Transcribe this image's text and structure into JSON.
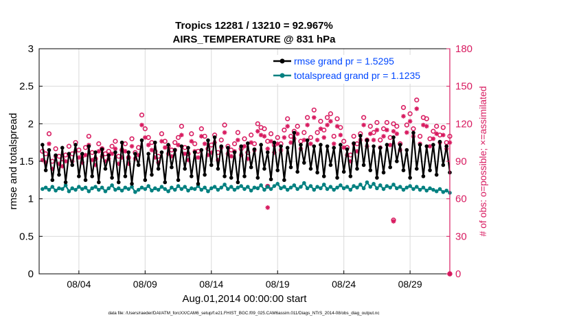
{
  "chart_data": {
    "type": "line",
    "title_line1": "Tropics 12281 / 13210 = 92.967%",
    "title_line2": "AIRS_TEMPERATURE @ 831 hPa",
    "xlabel": "Aug.01,2014 00:00:00 start",
    "ylabel_left": "rmse and totalspread",
    "ylabel_right": "# of obs: o=possible; ×=assimilated",
    "footer": "data file: /Users/raeder/DAI/ATM_forcXX/CAM6_setup/f.e21.FHIST_BGC.f09_025.CAM6assim.011/Diags_NTrS_2014-08/obs_diag_output.nc",
    "xlim": [
      1,
      32
    ],
    "ylim_left": [
      0,
      3
    ],
    "ylim_right": [
      0,
      180
    ],
    "x_ticks": [
      {
        "x": 4,
        "label": "08/04"
      },
      {
        "x": 9,
        "label": "08/09"
      },
      {
        "x": 14,
        "label": "08/14"
      },
      {
        "x": 19,
        "label": "08/19"
      },
      {
        "x": 24,
        "label": "08/24"
      },
      {
        "x": 29,
        "label": "08/29"
      }
    ],
    "y_ticks_left": [
      "0",
      "0.5",
      "1",
      "1.5",
      "2",
      "2.5",
      "3"
    ],
    "y_ticks_right": [
      "0",
      "30",
      "60",
      "90",
      "120",
      "150",
      "180"
    ],
    "colors": {
      "rmse": "#000000",
      "spread": "#008080",
      "obs": "#d81b60",
      "axis_right": "#d81b60",
      "grid": "#d9d9d9",
      "legend_text": "#0047ff"
    },
    "series": [
      {
        "name": "rmse grand pr = 1.5295",
        "axis": "left",
        "x_start": 1.25,
        "x_step": 0.25,
        "values": [
          1.72,
          1.38,
          1.65,
          1.25,
          1.58,
          1.32,
          1.68,
          1.22,
          1.6,
          1.45,
          1.72,
          1.3,
          1.6,
          1.25,
          1.7,
          1.3,
          1.62,
          1.22,
          1.66,
          1.4,
          1.58,
          1.28,
          1.62,
          1.22,
          1.75,
          1.3,
          1.62,
          1.2,
          1.6,
          1.45,
          1.78,
          1.25,
          1.6,
          1.32,
          1.75,
          1.4,
          1.62,
          1.22,
          1.72,
          1.42,
          1.65,
          1.25,
          1.7,
          1.4,
          1.68,
          1.3,
          1.62,
          1.2,
          1.65,
          1.32,
          1.78,
          1.45,
          1.82,
          1.4,
          1.7,
          1.3,
          1.68,
          1.28,
          1.62,
          1.22,
          1.7,
          1.3,
          1.74,
          1.42,
          1.66,
          1.28,
          1.72,
          1.4,
          1.62,
          1.26,
          1.75,
          1.38,
          1.7,
          1.25,
          1.68,
          1.42,
          1.88,
          1.36,
          1.72,
          1.48,
          1.78,
          1.4,
          1.7,
          1.35,
          1.72,
          1.3,
          1.7,
          1.45,
          1.68,
          1.28,
          1.72,
          1.36,
          1.66,
          1.3,
          1.74,
          1.4,
          1.84,
          1.45,
          1.78,
          1.38,
          1.7,
          1.28,
          1.68,
          1.35,
          1.72,
          1.42,
          1.82,
          1.5,
          1.72,
          1.38,
          1.65,
          1.28,
          1.88,
          1.4,
          1.72,
          1.3,
          1.7,
          1.38,
          1.72,
          1.32,
          1.76,
          1.45,
          1.7,
          1.35
        ]
      },
      {
        "name": "totalspread grand pr = 1.1235",
        "axis": "left",
        "x_start": 1.25,
        "x_step": 0.25,
        "values": [
          1.13,
          1.15,
          1.12,
          1.16,
          1.11,
          1.14,
          1.13,
          1.18,
          1.1,
          1.14,
          1.12,
          1.16,
          1.13,
          1.15,
          1.1,
          1.14,
          1.16,
          1.12,
          1.15,
          1.1,
          1.14,
          1.18,
          1.12,
          1.14,
          1.11,
          1.15,
          1.13,
          1.16,
          1.09,
          1.12,
          1.15,
          1.13,
          1.17,
          1.11,
          1.14,
          1.12,
          1.16,
          1.13,
          1.1,
          1.15,
          1.12,
          1.17,
          1.13,
          1.16,
          1.11,
          1.14,
          1.13,
          1.17,
          1.12,
          1.15,
          1.1,
          1.14,
          1.16,
          1.12,
          1.15,
          1.19,
          1.13,
          1.16,
          1.12,
          1.15,
          1.17,
          1.13,
          1.16,
          1.11,
          1.15,
          1.14,
          1.18,
          1.12,
          1.16,
          1.13,
          1.17,
          1.2,
          1.14,
          1.16,
          1.12,
          1.15,
          1.18,
          1.13,
          1.16,
          1.21,
          1.14,
          1.17,
          1.12,
          1.16,
          1.14,
          1.19,
          1.13,
          1.16,
          1.12,
          1.15,
          1.18,
          1.14,
          1.16,
          1.12,
          1.17,
          1.15,
          1.19,
          1.14,
          1.22,
          1.16,
          1.2,
          1.14,
          1.18,
          1.13,
          1.17,
          1.15,
          1.19,
          1.14,
          1.16,
          1.12,
          1.15,
          1.17,
          1.13,
          1.16,
          1.12,
          1.15,
          1.11,
          1.14,
          1.12,
          1.1,
          1.13,
          1.09,
          1.11,
          1.08
        ]
      },
      {
        "name": "obs possible",
        "axis": "right",
        "marker": "circle",
        "x_start": 1.25,
        "x_step": 0.25,
        "values": [
          98,
          96,
          112,
          90,
          100,
          94,
          92,
          95,
          102,
          96,
          105,
          99,
          94,
          101,
          110,
          97,
          92,
          104,
          100,
          96,
          98,
          102,
          106,
          94,
          99,
          104,
          93,
          108,
          97,
          101,
          127,
          116,
          109,
          105,
          98,
          94,
          112,
          106,
          102,
          99,
          105,
          109,
          118,
          101,
          96,
          112,
          104,
          98,
          116,
          110,
          100,
          103,
          111,
          97,
          107,
          119,
          102,
          99,
          104,
          113,
          100,
          108,
          97,
          111,
          104,
          120,
          117,
          116,
          106,
          112,
          103,
          109,
          104,
          115,
          124,
          110,
          114,
          118,
          106,
          113,
          125,
          109,
          131,
          113,
          122,
          115,
          125,
          128,
          110,
          124,
          117,
          106,
          101,
          95,
          110,
          104,
          112,
          125,
          107,
          118,
          113,
          121,
          107,
          116,
          121,
          109,
          120,
          118,
          104,
          133,
          119,
          128,
          116,
          139,
          110,
          125,
          124,
          108,
          114,
          118,
          111,
          117,
          105,
          110
        ]
      },
      {
        "name": "obs assimilated",
        "axis": "right",
        "marker": "asterisk",
        "x_start": 1.25,
        "x_step": 0.25,
        "values": [
          91,
          89,
          104,
          84,
          94,
          88,
          86,
          90,
          95,
          90,
          98,
          93,
          89,
          95,
          103,
          91,
          87,
          98,
          94,
          90,
          92,
          96,
          100,
          88,
          93,
          98,
          88,
          102,
          92,
          95,
          119,
          109,
          103,
          99,
          93,
          89,
          106,
          101,
          96,
          94,
          99,
          103,
          111,
          96,
          91,
          106,
          98,
          93,
          110,
          104,
          95,
          97,
          105,
          91,
          101,
          113,
          96,
          94,
          98,
          107,
          95,
          102,
          92,
          105,
          99,
          114,
          111,
          110,
          100,
          106,
          97,
          104,
          99,
          109,
          118,
          105,
          108,
          112,
          100,
          107,
          119,
          104,
          125,
          107,
          116,
          109,
          119,
          122,
          104,
          118,
          111,
          101,
          95,
          90,
          104,
          98,
          107,
          119,
          102,
          112,
          107,
          115,
          101,
          110,
          115,
          103,
          114,
          112,
          99,
          126,
          113,
          122,
          110,
          132,
          104,
          119,
          118,
          102,
          108,
          112,
          105,
          111,
          100,
          105
        ],
        "outliers": [
          {
            "x": 18.25,
            "label_o": 70,
            "value": 53
          },
          {
            "x": 27.75,
            "label_o": 43,
            "value": 42
          }
        ]
      }
    ],
    "legend": [
      {
        "label": "rmse grand pr = 1.5295",
        "color": "#000000"
      },
      {
        "label": "totalspread grand pr = 1.1235",
        "color": "#008080"
      }
    ]
  }
}
